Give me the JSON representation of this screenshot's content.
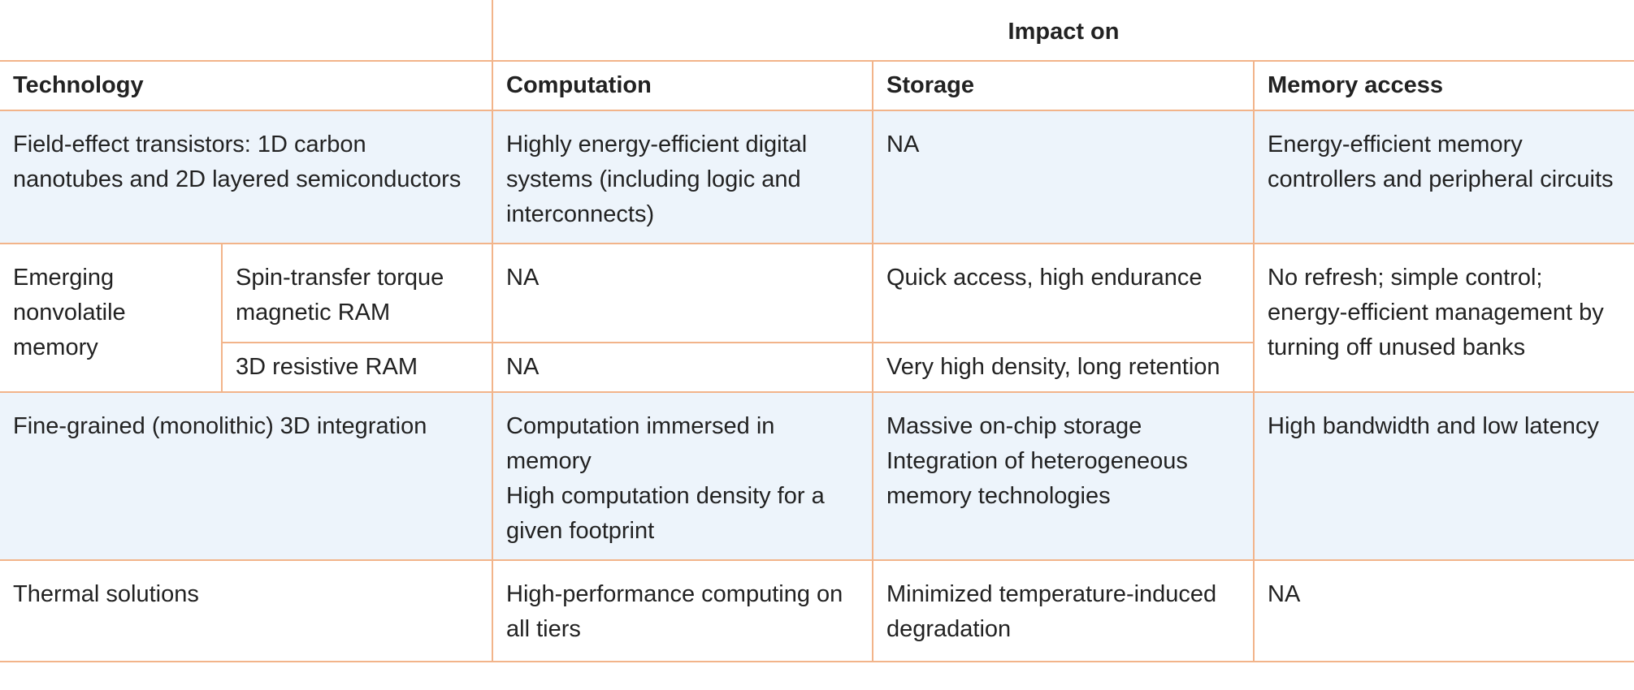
{
  "header": {
    "impact_on": "Impact on",
    "technology": "Technology",
    "computation": "Computation",
    "storage": "Storage",
    "memory_access": "Memory access"
  },
  "rows": {
    "fet": {
      "technology": "Field-effect transistors: 1D carbon nanotubes and 2D layered semiconductors",
      "computation": "Highly energy-efficient digital systems (including logic and interconnects)",
      "storage": "NA",
      "memory_access": "Energy-efficient memory controllers and peripheral circuits"
    },
    "nvm": {
      "group": "Emerging nonvolatile memory",
      "memory_access": "No refresh; simple control; energy-efficient management by turning off unused banks",
      "stt": {
        "technology": "Spin-transfer torque magnetic RAM",
        "computation": "NA",
        "storage": "Quick access, high endurance"
      },
      "rram": {
        "technology": "3D resistive RAM",
        "computation": "NA",
        "storage": "Very high density, long retention"
      }
    },
    "mono3d": {
      "technology": "Fine-grained (monolithic) 3D integration",
      "computation": [
        "Computation immersed in memory",
        "High computation density for a given footprint"
      ],
      "storage": [
        "Massive on-chip storage",
        "Integration of heterogeneous memory technologies"
      ],
      "memory_access": "High bandwidth and low latency"
    },
    "thermal": {
      "technology": "Thermal solutions",
      "computation": "High-performance computing on all tiers",
      "storage": "Minimized temperature-induced degradation",
      "memory_access": "NA"
    }
  }
}
